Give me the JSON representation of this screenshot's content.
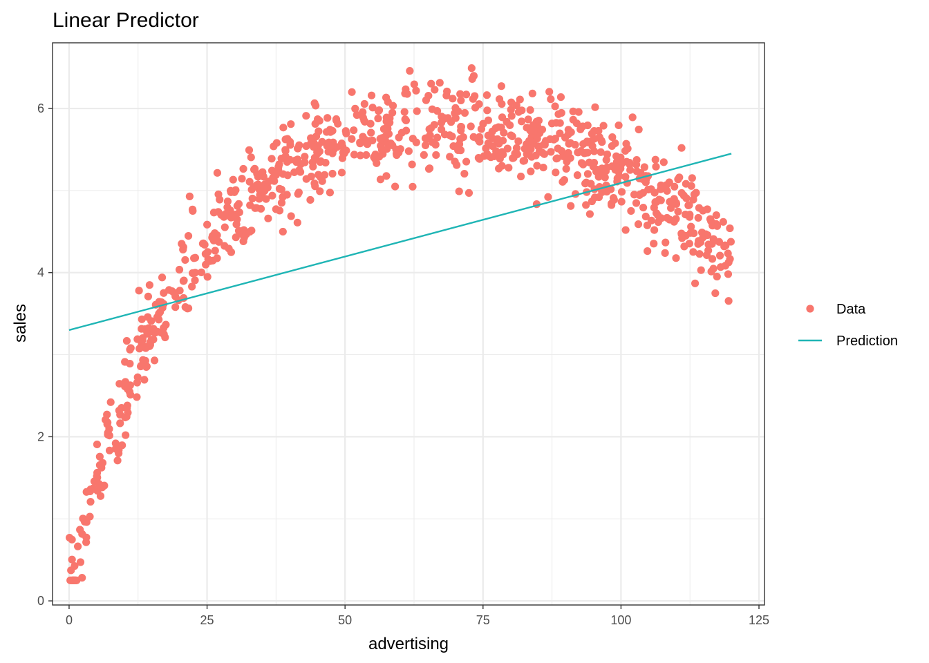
{
  "chart_data": {
    "type": "scatter",
    "title": "Linear Predictor",
    "xlabel": "advertising",
    "ylabel": "sales",
    "xlim": [
      -3,
      126
    ],
    "ylim": [
      -0.05,
      6.8
    ],
    "x_ticks": [
      0,
      25,
      50,
      75,
      100,
      125
    ],
    "y_ticks": [
      0,
      2,
      4,
      6
    ],
    "grid": true,
    "legend_position": "right",
    "colors": {
      "data": "#F8766D",
      "prediction": "#1FB5B5",
      "grid": "#EBEBEB",
      "panel_border": "#333333"
    },
    "legend": [
      {
        "key": "data",
        "label": "Data",
        "shape": "point"
      },
      {
        "key": "prediction",
        "label": "Prediction",
        "shape": "line"
      }
    ],
    "prediction": {
      "x": [
        0,
        120
      ],
      "y": [
        3.3,
        5.45
      ]
    },
    "data_trend": {
      "x_range": [
        0,
        120
      ],
      "n_points": 900,
      "peak_x": 68,
      "peak_y": 5.8,
      "noise_sd": 0.28
    }
  }
}
